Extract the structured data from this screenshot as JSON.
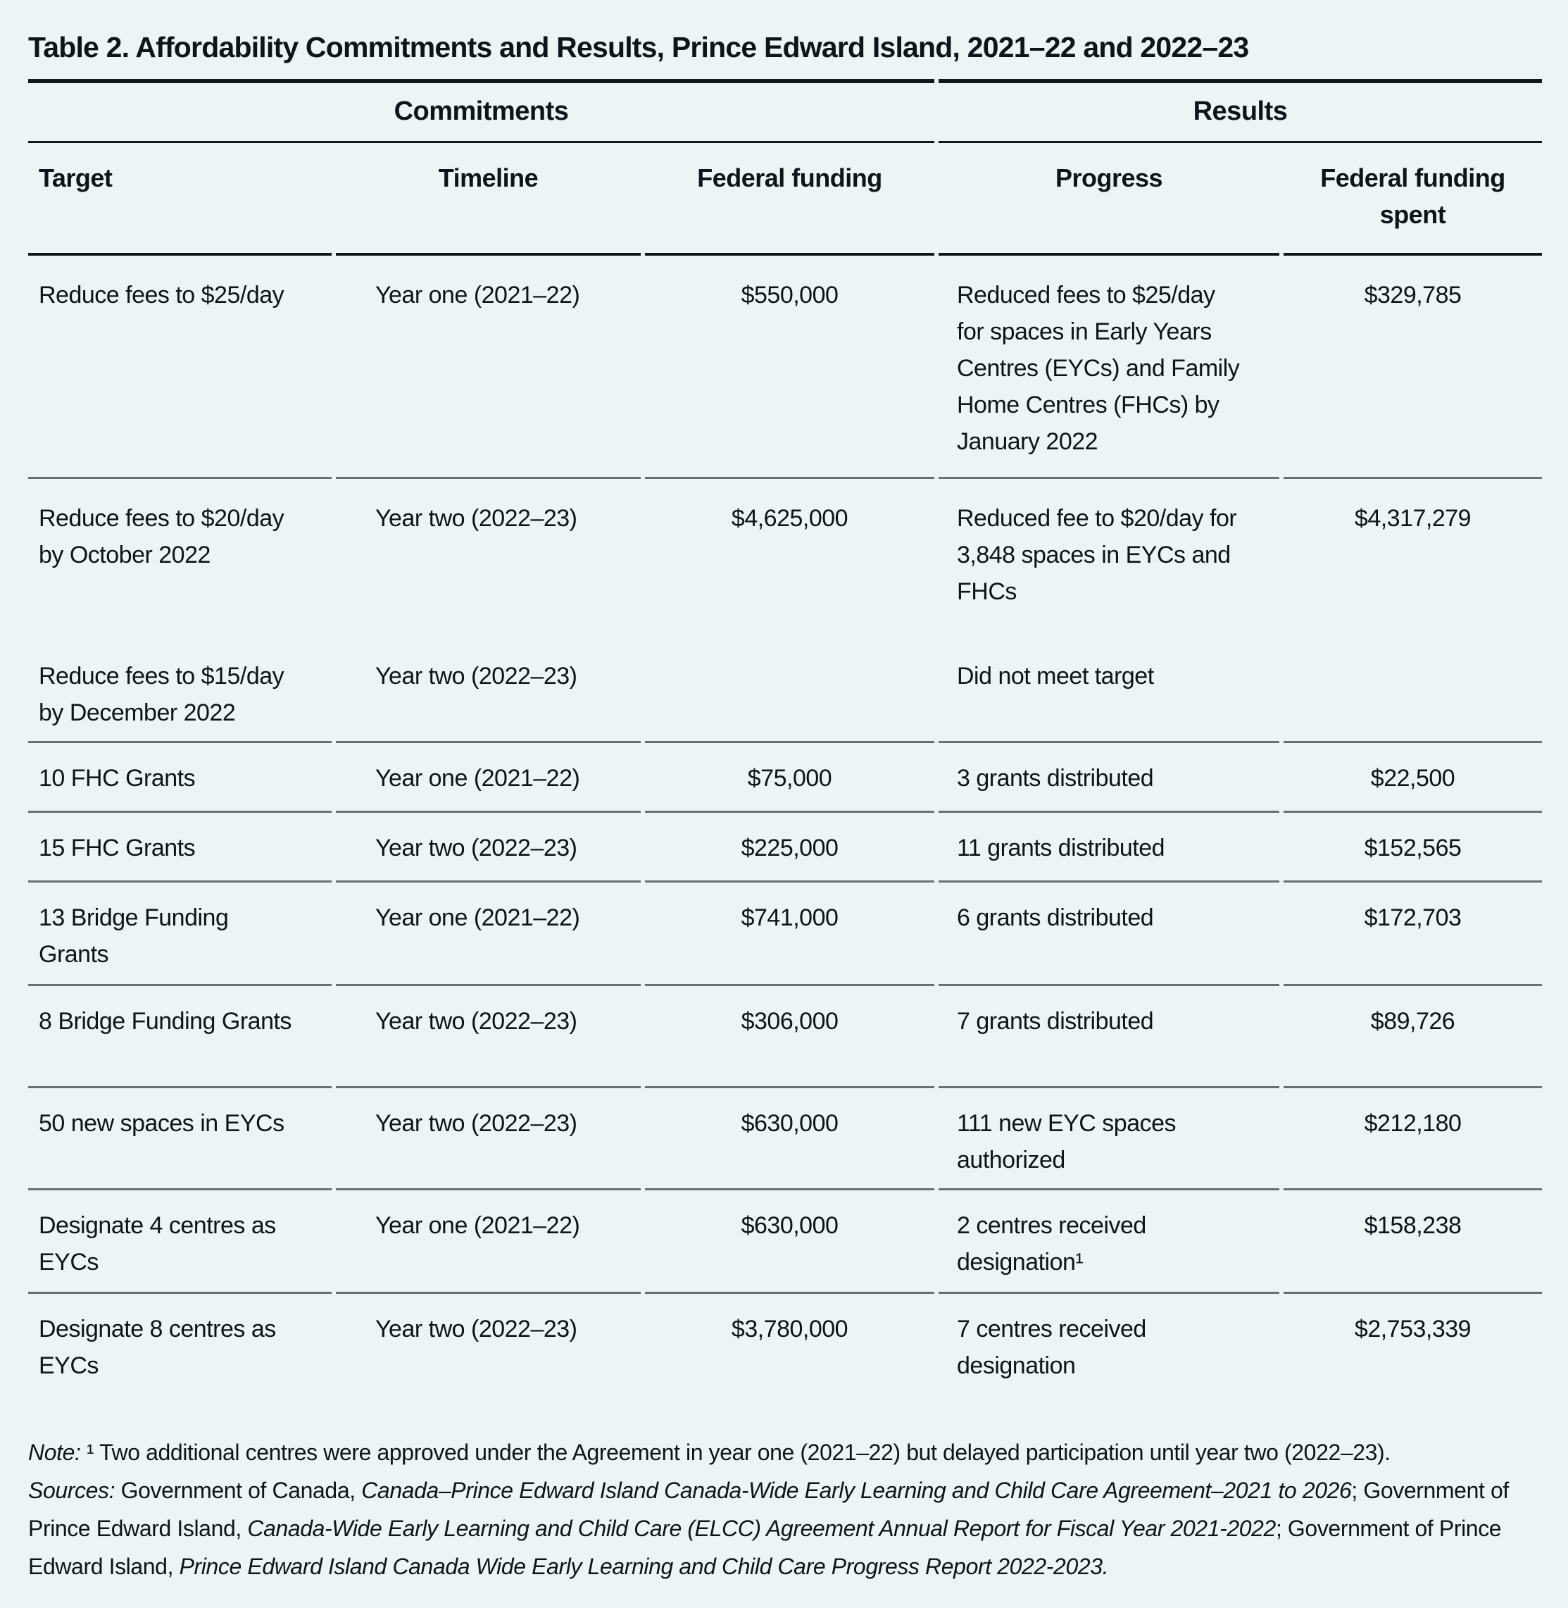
{
  "title": "Table 2. Affordability Commitments and Results, Prince Edward Island, 2021–22 and 2022–23",
  "colors": {
    "background": "#ecf4f6",
    "text": "#0e151a",
    "rule_heavy": "#11181c",
    "rule_light": "#677174"
  },
  "table": {
    "group_headers": {
      "commitments": "Commitments",
      "results": "Results"
    },
    "columns": {
      "target": "Target",
      "timeline": "Timeline",
      "funding": "Federal funding",
      "progress": "Progress",
      "spent": "Federal funding\nspent"
    },
    "rows": [
      {
        "target": "Reduce fees to $25/day",
        "timeline": "Year one (2021–22)",
        "funding": "$550,000",
        "progress": "Reduced fees to $25/day\nfor spaces in Early Years\nCentres (EYCs) and Family\nHome Centres (FHCs) by\nJanuary 2022",
        "spent": "$329,785"
      },
      {
        "target": "Reduce fees to $20/day\nby October 2022",
        "timeline": "Year two (2022–23)",
        "funding": "$4,625,000",
        "progress": "Reduced fee to $20/day for\n3,848 spaces in EYCs and\nFHCs",
        "spent": "$4,317,279"
      },
      {
        "target": "Reduce fees to $15/day\nby December 2022",
        "timeline": "Year two (2022–23)",
        "funding": "",
        "progress": "Did not meet target",
        "spent": ""
      },
      {
        "target": "10 FHC Grants",
        "timeline": "Year one (2021–22)",
        "funding": "$75,000",
        "progress": "3 grants distributed",
        "spent": "$22,500"
      },
      {
        "target": "15 FHC Grants",
        "timeline": "Year two (2022–23)",
        "funding": "$225,000",
        "progress": "11 grants distributed",
        "spent": "$152,565"
      },
      {
        "target": "13 Bridge Funding\nGrants",
        "timeline": "Year one (2021–22)",
        "funding": "$741,000",
        "progress": "6 grants distributed",
        "spent": "$172,703"
      },
      {
        "target": "8 Bridge Funding Grants",
        "timeline": "Year two (2022–23)",
        "funding": "$306,000",
        "progress": "7 grants distributed",
        "spent": "$89,726"
      },
      {
        "target": "50 new spaces in EYCs",
        "timeline": "Year two (2022–23)",
        "funding": "$630,000",
        "progress": "111 new EYC spaces\nauthorized",
        "spent": "$212,180"
      },
      {
        "target": "Designate 4 centres as\nEYCs",
        "timeline": "Year one (2021–22)",
        "funding": "$630,000",
        "progress": "2 centres received\ndesignation¹",
        "spent": "$158,238"
      },
      {
        "target": "Designate 8 centres as\nEYCs",
        "timeline": "Year two (2022–23)",
        "funding": "$3,780,000",
        "progress": "7 centres received\ndesignation",
        "spent": "$2,753,339"
      }
    ]
  },
  "notes": {
    "note_label": "Note:",
    "note_text": " ¹ Two additional centres were approved under the Agreement in year one (2021–22) but delayed participation until year two (2022–23).",
    "sources": {
      "s1": "Sources:",
      "s2": " Government of Canada, ",
      "s3": "Canada–Prince Edward Island Canada-Wide Early Learning and Child Care Agreement–2021 to 2026",
      "s4": "; Government of Prince Edward Island, ",
      "s5": "Canada-Wide Early Learning and Child Care (ELCC) Agreement Annual Report for Fiscal Year 2021-2022",
      "s6": "; Government of Prince Edward Island, ",
      "s7": "Prince Edward Island Canada Wide Early Learning and Child Care Progress Report 2022-2023."
    }
  }
}
